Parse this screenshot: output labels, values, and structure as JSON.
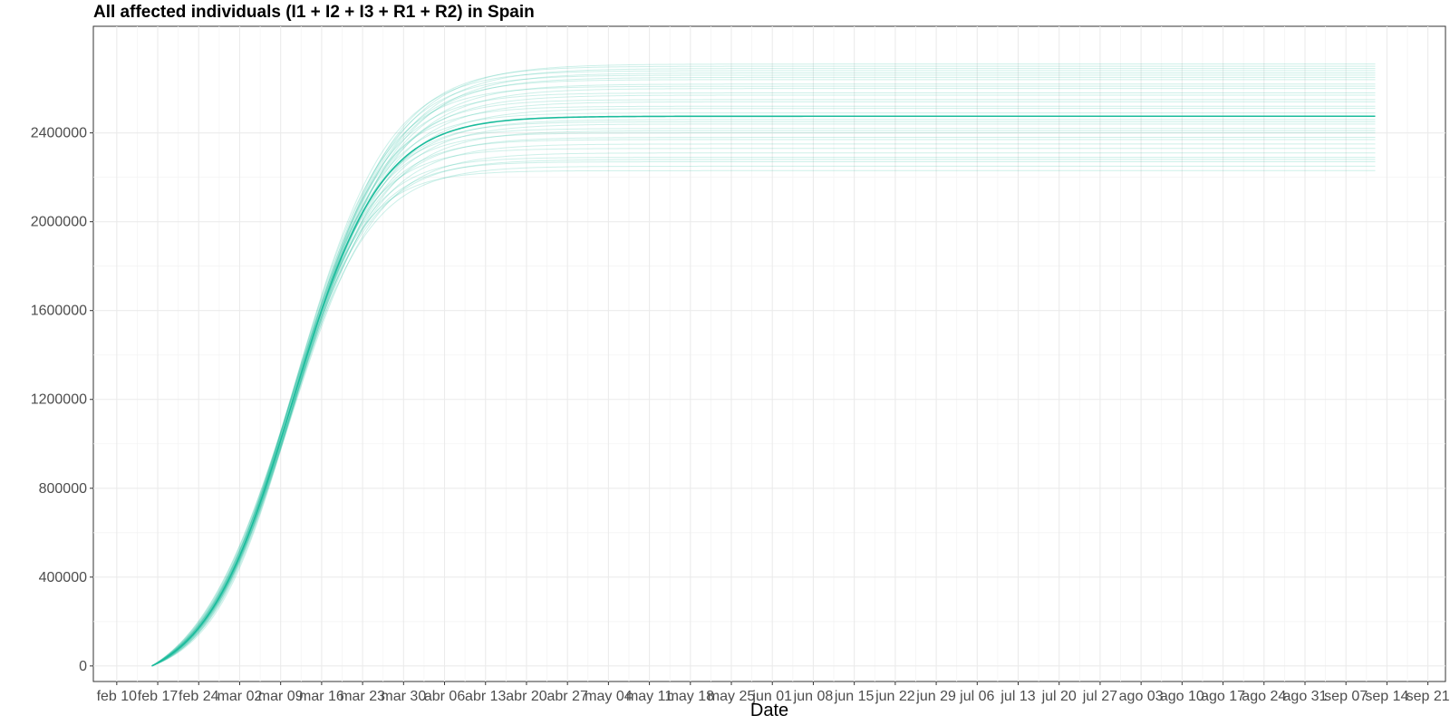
{
  "chart_data": {
    "type": "line",
    "title": "All affected individuals (I1 + I2 + I3 + R1 + R2) in  Spain",
    "xlabel": "Date",
    "ylabel": "",
    "ylim": [
      -70000,
      2880000
    ],
    "yticks": [
      0,
      400000,
      800000,
      1200000,
      1600000,
      2000000,
      2400000
    ],
    "ytick_labels": [
      "0",
      "400000",
      "800000",
      "1200000",
      "1600000",
      "2000000",
      "2400000"
    ],
    "xlim": [
      "2020-02-06",
      "2020-09-24"
    ],
    "xticks": [
      "2020-02-10",
      "2020-02-17",
      "2020-02-24",
      "2020-03-02",
      "2020-03-09",
      "2020-03-16",
      "2020-03-23",
      "2020-03-30",
      "2020-04-06",
      "2020-04-13",
      "2020-04-20",
      "2020-04-27",
      "2020-05-04",
      "2020-05-11",
      "2020-05-18",
      "2020-05-25",
      "2020-06-01",
      "2020-06-08",
      "2020-06-15",
      "2020-06-22",
      "2020-06-29",
      "2020-07-06",
      "2020-07-13",
      "2020-07-20",
      "2020-07-27",
      "2020-08-03",
      "2020-08-10",
      "2020-08-17",
      "2020-08-24",
      "2020-08-31",
      "2020-09-07",
      "2020-09-14",
      "2020-09-21"
    ],
    "xtick_labels": [
      "feb 10",
      "feb 17",
      "feb 24",
      "mar 02",
      "mar 09",
      "mar 16",
      "mar 23",
      "mar 30",
      "abr 06",
      "abr 13",
      "abr 20",
      "abr 27",
      "may 04",
      "may 11",
      "may 18",
      "may 25",
      "jun 01",
      "jun 08",
      "jun 15",
      "jun 22",
      "jun 29",
      "jul 06",
      "jul 13",
      "jul 20",
      "jul 27",
      "ago 03",
      "ago 10",
      "ago 17",
      "ago 24",
      "ago 31",
      "sep 07",
      "sep 14",
      "sep 21"
    ],
    "grid": true,
    "legend": "none",
    "series_color": "#1abc9c",
    "series": [
      {
        "role": "median",
        "start": "2020-02-16",
        "end": "2020-09-12",
        "plateau": 2475000,
        "midpoint": "2020-03-11",
        "scale_days": 7.5
      },
      {
        "role": "ensemble",
        "start": "2020-02-16",
        "end": "2020-09-12",
        "plateaus": [
          2230000,
          2250000,
          2270000,
          2280000,
          2290000,
          2310000,
          2330000,
          2350000,
          2370000,
          2380000,
          2400000,
          2410000,
          2420000,
          2440000,
          2450000,
          2460000,
          2490000,
          2510000,
          2520000,
          2540000,
          2550000,
          2570000,
          2580000,
          2600000,
          2610000,
          2620000,
          2640000,
          2650000,
          2660000,
          2670000,
          2680000,
          2690000,
          2700000,
          2710000
        ]
      }
    ]
  }
}
